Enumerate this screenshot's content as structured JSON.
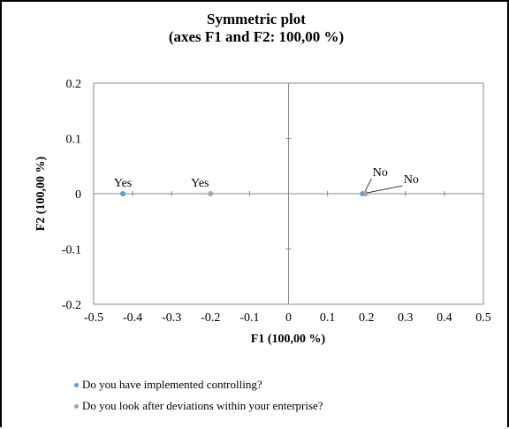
{
  "chart_data": {
    "type": "scatter",
    "title_lines": [
      "Symmetric plot",
      "(axes F1 and F2: 100,00 %)"
    ],
    "xlabel": "F1 (100,00 %)",
    "ylabel": "F2 (100,00 %)",
    "xlim": [
      -0.5,
      0.5
    ],
    "ylim": [
      -0.2,
      0.2
    ],
    "x_ticks": [
      -0.5,
      -0.4,
      -0.3,
      -0.2,
      -0.1,
      0,
      0.1,
      0.2,
      0.3,
      0.4,
      0.5
    ],
    "y_ticks": [
      -0.2,
      -0.1,
      0,
      0.1,
      0.2
    ],
    "x_tick_labels": [
      "-0.5",
      "-0.4",
      "-0.3",
      "-0.2",
      "-0.1",
      "0",
      "0.1",
      "0.2",
      "0.3",
      "0.4",
      "0.5"
    ],
    "y_tick_labels": [
      "-0.2",
      "-0.1",
      "0",
      "0.1",
      "0.2"
    ],
    "grid": false,
    "legend_position": "bottom",
    "series": [
      {
        "name": "Do you have implemented controlling?",
        "color": "#5b9bd5",
        "points": [
          {
            "label": "Yes",
            "x": -0.425,
            "y": 0
          },
          {
            "label": "No",
            "x": 0.19,
            "y": 0
          }
        ]
      },
      {
        "name": "Do you look after deviations within your enterprise?",
        "color": "#a5a5a5",
        "points": [
          {
            "label": "Yes",
            "x": -0.2,
            "y": 0
          },
          {
            "label": "No",
            "x": 0.197,
            "y": 0
          }
        ]
      }
    ]
  }
}
